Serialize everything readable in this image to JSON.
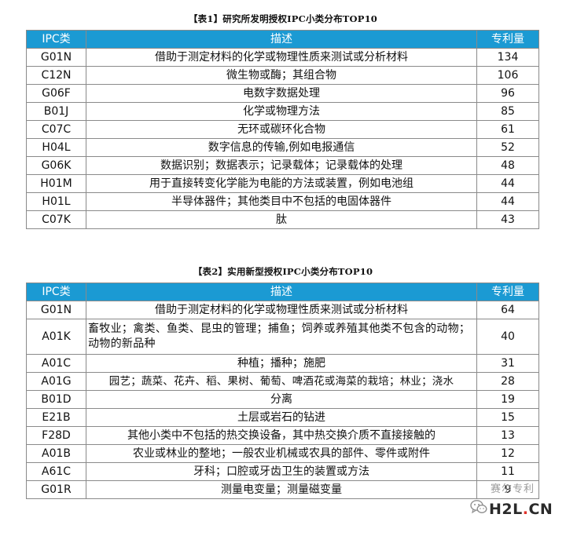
{
  "table1": {
    "caption": "【表1】研究所发明授权IPC小类分布TOP10",
    "headers": [
      "IPC类",
      "描述",
      "专利量"
    ],
    "rows": [
      {
        "ipc": "G01N",
        "desc": "借助于测定材料的化学或物理性质来测试或分析材料",
        "count": "134"
      },
      {
        "ipc": "C12N",
        "desc": "微生物或酶；其组合物",
        "count": "106"
      },
      {
        "ipc": "G06F",
        "desc": "电数字数据处理",
        "count": "96"
      },
      {
        "ipc": "B01J",
        "desc": "化学或物理方法",
        "count": "85"
      },
      {
        "ipc": "C07C",
        "desc": "无环或碳环化合物",
        "count": "61"
      },
      {
        "ipc": "H04L",
        "desc": "数字信息的传输,例如电报通信",
        "count": "52"
      },
      {
        "ipc": "G06K",
        "desc": "数据识别；数据表示；记录载体；记录载体的处理",
        "count": "48"
      },
      {
        "ipc": "H01M",
        "desc": "用于直接转变化学能为电能的方法或装置，例如电池组",
        "count": "44"
      },
      {
        "ipc": "H01L",
        "desc": "半导体器件；其他类目中不包括的电固体器件",
        "count": "44"
      },
      {
        "ipc": "C07K",
        "desc": "肽",
        "count": "43"
      }
    ]
  },
  "table2": {
    "caption": "【表2】实用新型授权IPC小类分布TOP10",
    "headers": [
      "IPC类",
      "描述",
      "专利量"
    ],
    "rows": [
      {
        "ipc": "G01N",
        "desc": "借助于测定材料的化学或物理性质来测试或分析材料",
        "count": "64"
      },
      {
        "ipc": "A01K",
        "desc": "畜牧业；禽类、鱼类、昆虫的管理；捕鱼；饲养或养殖其他类不包含的动物；动物的新品种",
        "count": "40"
      },
      {
        "ipc": "A01C",
        "desc": "种植；播种；施肥",
        "count": "31"
      },
      {
        "ipc": "A01G",
        "desc": "园艺；蔬菜、花卉、稻、果树、葡萄、啤酒花或海菜的栽培；林业；浇水",
        "count": "28"
      },
      {
        "ipc": "B01D",
        "desc": "分离",
        "count": "19"
      },
      {
        "ipc": "E21B",
        "desc": "土层或岩石的钻进",
        "count": "15"
      },
      {
        "ipc": "F28D",
        "desc": "其他小类中不包括的热交换设备，其中热交换介质不直接接触的",
        "count": "13"
      },
      {
        "ipc": "A01B",
        "desc": "农业或林业的整地；一般农业机械或农具的部件、零件或附件",
        "count": "12"
      },
      {
        "ipc": "A61C",
        "desc": "牙科；口腔或牙齿卫生的装置或方法",
        "count": "11"
      },
      {
        "ipc": "G01R",
        "desc": "测量电变量；测量磁变量",
        "count": "9"
      }
    ]
  },
  "watermark": {
    "text": "赛尔专利",
    "logo_main": "H2L",
    "logo_dot": ".",
    "logo_suffix": "CN",
    "icon": "wechat-icon"
  }
}
